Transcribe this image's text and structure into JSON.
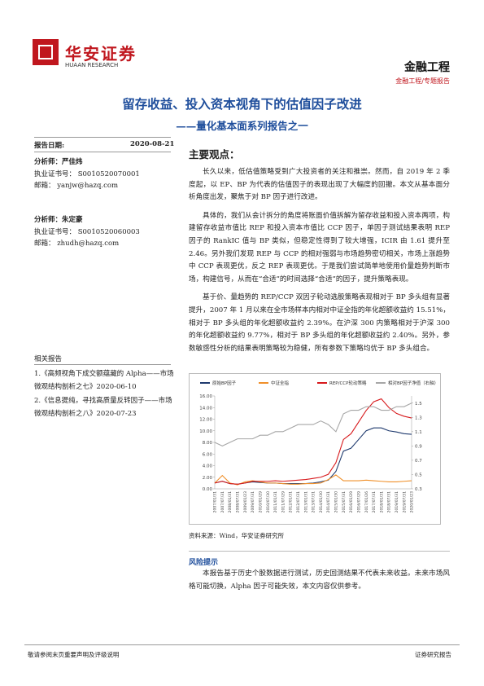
{
  "header": {
    "logo_text": "华安证券",
    "logo_sub": "HUAAN RESEARCH",
    "category": "金融工程",
    "subcategory": "金融工程/专题报告"
  },
  "title": "留存收益、投入资本视角下的估值因子改进",
  "subtitle": "——量化基本面系列报告之一",
  "sidebar": {
    "report_date_label": "报告日期:",
    "report_date": "2020-08-21",
    "analysts": [
      {
        "name": "分析师：严佳炜",
        "cert": "执业证书号： S0010520070001",
        "email": "邮箱： yanjw@hazq.com"
      },
      {
        "name": "分析师：朱定豪",
        "cert": "执业证书号： S0010520060003",
        "email": "邮箱： zhudh@hazq.com"
      }
    ],
    "related_heading": "相关报告",
    "related": [
      "1.《高频视角下成交额蕴藏的 Alpha——市场微观结构剖析之七》2020-06-10",
      "2.《信息提纯，寻找高质量反转因子——市场微观结构剖析之八》2020-07-23"
    ]
  },
  "main": {
    "heading": "主要观点：",
    "paragraphs": [
      "长久以来，低估值策略受到广大投资者的关注和推崇。然而，自 2019 年 2 季度起，以 EP、BP 为代表的估值因子的表现出现了大幅度的回撤。本文从基本面分析角度出发，聚焦于对 BP 因子进行改进。",
      "具体的，我们从会计拆分的角度将账面价值拆解为留存收益和投入资本两项，构建留存收益市值比 REP 和投入资本市值比 CCP 因子，单因子测试结果表明 REP 因子的 RankIC 值与 BP 类似，但稳定性得到了较大增强，ICIR 由 1.61 提升至 2.46。另外我们发现 REP 与 CCP 的相对强弱与市场趋势密切相关，市场上涨趋势中 CCP 表现更优，反之 REP 表现更优。于是我们尝试简单地使用价量趋势判断市场，构建信号，从而在“合适”的时间选择“合适”的因子，提升策略表现。",
      "基于价、量趋势的 REP/CCP 双因子轮动选股策略表现相对于 BP 多头组有显著提升，2007 年 1 月以来在全市场样本内相对中证全指的年化超额收益约 15.51%，相对于 BP 多头组的年化超额收益约 2.39%。在沪深 300 内策略相对于沪深 300 的年化超额收益约 9.77%，相对于 BP 多头组的年化超额收益约 2.40%。另外，参数敏感性分析的结果表明策略较为稳健，所有参数下策略均优于 BP 多头组合。"
    ],
    "source": "资料来源：Wind，华安证券研究所",
    "risk_heading": "风险提示",
    "risk_text": "本报告基于历史个股数据进行测试，历史回测结果不代表未来收益。未来市场风格可能切换，Alpha 因子可能失效，本文内容仅供参考。"
  },
  "footer": {
    "left": "敬请参阅末页重要声明及评级说明",
    "right": "证券研究报告"
  },
  "chart_data": {
    "type": "line",
    "x": [
      "2007/01/31",
      "2007/07/31",
      "2008/01/31",
      "2008/07/31",
      "2009/01/23",
      "2009/07/31",
      "2010/01/29",
      "2010/07/30",
      "2011/01/31",
      "2011/07/29",
      "2012/01/31",
      "2012/07/31",
      "2013/01/31",
      "2013/07/31",
      "2014/01/30",
      "2014/07/31",
      "2015/01/30",
      "2015/07/31",
      "2016/01/29",
      "2016/07/29",
      "2017/01/26",
      "2017/07/31",
      "2018/01/31",
      "2018/07/31",
      "2019/01/31",
      "2019/07/31",
      "2020/01/23"
    ],
    "series": [
      {
        "name": "原始BP因子",
        "color": "#1f3a6e",
        "values": [
          1.0,
          1.3,
          0.9,
          0.8,
          1.0,
          1.2,
          1.1,
          1.0,
          1.0,
          0.9,
          0.9,
          0.9,
          0.9,
          1.0,
          1.2,
          1.5,
          3.0,
          6.5,
          7.0,
          8.5,
          10.0,
          10.5,
          10.5,
          10.0,
          9.8,
          9.5,
          9.4
        ]
      },
      {
        "name": "中证全指",
        "color": "#f0902a",
        "values": [
          1.0,
          2.3,
          1.0,
          0.7,
          1.2,
          1.4,
          1.2,
          1.0,
          1.0,
          0.9,
          0.8,
          0.8,
          0.9,
          0.9,
          1.0,
          1.6,
          2.4,
          1.4,
          1.4,
          1.4,
          1.5,
          1.4,
          1.3,
          1.2,
          1.2,
          1.3,
          1.4
        ]
      },
      {
        "name": "REP/CCP轮动策略",
        "color": "#d7191c",
        "values": [
          1.0,
          1.3,
          0.9,
          0.8,
          1.0,
          1.3,
          1.3,
          1.3,
          1.4,
          1.3,
          1.4,
          1.5,
          1.6,
          1.8,
          2.0,
          2.5,
          4.5,
          8.5,
          9.5,
          11.5,
          13.5,
          15.0,
          15.5,
          14.0,
          13.0,
          12.5,
          12.2
        ]
      },
      {
        "name": "相对BP因子净值（右轴）",
        "color": "#a6a6a6",
        "axis": "y2",
        "values": [
          0.95,
          0.9,
          0.95,
          1.0,
          1.0,
          1.0,
          1.05,
          1.05,
          1.1,
          1.1,
          1.15,
          1.2,
          1.2,
          1.2,
          1.25,
          1.2,
          1.1,
          1.35,
          1.4,
          1.4,
          1.45,
          1.45,
          1.4,
          1.4,
          1.45,
          1.45,
          1.5
        ]
      }
    ],
    "ylim": [
      0,
      16
    ],
    "yticks": [
      {
        "value": 0,
        "label": "0.00"
      },
      {
        "value": 2,
        "label": "2.00"
      },
      {
        "value": 4,
        "label": "4.00"
      },
      {
        "value": 6,
        "label": "6.00"
      },
      {
        "value": 8,
        "label": "8.00"
      },
      {
        "value": 10,
        "label": "10.00"
      },
      {
        "value": 12,
        "label": "12.00"
      },
      {
        "value": 14,
        "label": "14.00"
      },
      {
        "value": 16,
        "label": "16.00"
      }
    ],
    "y2lim": [
      0.3,
      1.6
    ],
    "y2ticks": [
      0.3,
      0.5,
      0.7,
      0.9,
      1.1,
      1.3,
      1.5
    ]
  }
}
